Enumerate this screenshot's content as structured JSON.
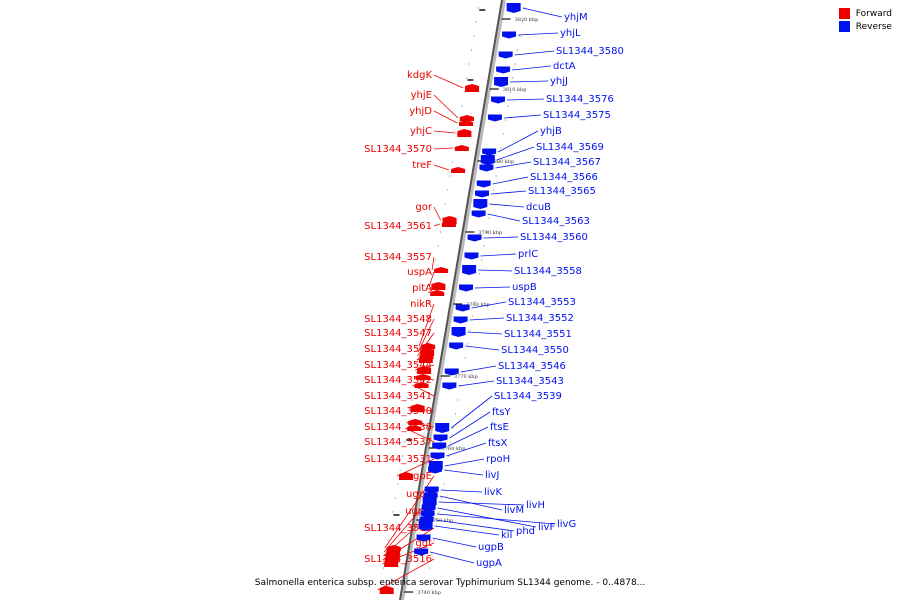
{
  "legend": [
    {
      "label": "Forward",
      "color": "#ee0000"
    },
    {
      "label": "Reverse",
      "color": "#0011ee"
    }
  ],
  "caption": "Salmonella enterica subsp. enterica serovar Typhimurium SL1344 genome. - 0..4878...",
  "ticks": [
    "3820 kbp",
    "3810 kbp",
    "3800 kbp",
    "3790 kbp",
    "3780 kbp",
    "3770 kbp",
    "3760 kbp",
    "3750 kbp",
    "3740 kbp"
  ],
  "forward_genes": [
    "kdgK",
    "yhjE",
    "yhjD",
    "yhjC",
    "SL1344_3570",
    "treF",
    "gor",
    "SL1344_3561",
    "SL1344_3557",
    "uspA",
    "pitA",
    "nikR",
    "SL1344_3548",
    "SL1344_3547",
    "SL1344_3545",
    "SL1344_3544",
    "SL1344_3542",
    "SL1344_3541",
    "SL1344_3540",
    "SL1344_3538",
    "SL1344_3537",
    "SL1344_3531",
    "ugpE",
    "ugpC",
    "ugpQ",
    "SL1344_3518",
    "ggt",
    "SL1344_3516"
  ],
  "reverse_genes": [
    "yhjM",
    "yhjL",
    "SL1344_3580",
    "dctA",
    "yhjJ",
    "SL1344_3576",
    "SL1344_3575",
    "yhjB",
    "SL1344_3569",
    "SL1344_3567",
    "SL1344_3566",
    "SL1344_3565",
    "dcuB",
    "SL1344_3563",
    "SL1344_3560",
    "prlC",
    "SL1344_3558",
    "uspB",
    "SL1344_3553",
    "SL1344_3552",
    "SL1344_3551",
    "SL1344_3550",
    "SL1344_3546",
    "SL1344_3543",
    "SL1344_3539",
    "ftsY",
    "ftsE",
    "ftsX",
    "rpoH",
    "livJ",
    "livK",
    "livM",
    "livH",
    "livF",
    "livG",
    "phd",
    "kil",
    "ugpB",
    "ugpA"
  ]
}
